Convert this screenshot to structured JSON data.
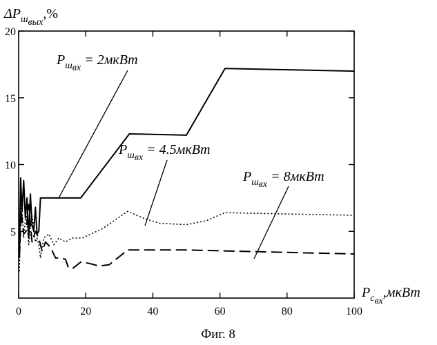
{
  "chart_data": {
    "type": "line",
    "caption": "Фиг. 8",
    "y_axis_label": {
      "main": "ΔP",
      "sub": "ш",
      "subsub": "вых",
      "unit": ",%"
    },
    "x_axis_label": {
      "main": "P",
      "sub": "с",
      "subsub": "вх",
      "unit": ",мкВт"
    },
    "xlim": [
      0,
      100
    ],
    "ylim": [
      0,
      20
    ],
    "x_ticks": [
      0,
      20,
      40,
      60,
      80,
      100
    ],
    "x_tick_labels": [
      "0",
      "20",
      "40",
      "60",
      "80",
      "100"
    ],
    "y_ticks": [
      5,
      10,
      15,
      20
    ],
    "y_tick_labels": [
      "5",
      "10",
      "15",
      "20"
    ],
    "grid": false,
    "series": [
      {
        "annotation": {
          "main": "P",
          "sub": "ш",
          "subsub": "вх",
          "rest": " = 2мкВт"
        },
        "style": "solid",
        "x": [
          0.2,
          0.6,
          1.0,
          1.5,
          2.0,
          2.5,
          3.0,
          3.5,
          4.0,
          4.5,
          5.0,
          5.5,
          6.0,
          6.5,
          18.5,
          33,
          50,
          61.5,
          100
        ],
        "y": [
          3.0,
          9.0,
          6.5,
          8.8,
          6.0,
          7.5,
          4.5,
          7.8,
          5.5,
          5.0,
          6.8,
          4.8,
          5.0,
          7.5,
          7.5,
          12.3,
          12.2,
          17.2,
          17.0
        ]
      },
      {
        "annotation": {
          "main": "P",
          "sub": "ш",
          "subsub": "вх",
          "rest": " = 4.5мкВт"
        },
        "style": "dotted",
        "x": [
          0.2,
          0.8,
          1.5,
          2.2,
          3.0,
          4.0,
          5.0,
          5.5,
          6.0,
          6.5,
          7.5,
          9.0,
          10.5,
          12.0,
          14.0,
          16.0,
          19.0,
          25.0,
          32.5,
          37.0,
          42.0,
          50.0,
          56.0,
          61.5,
          80.0,
          100.0
        ],
        "y": [
          2.0,
          7.5,
          4.5,
          6.5,
          4.0,
          6.2,
          4.2,
          4.5,
          4.0,
          3.0,
          4.5,
          4.8,
          4.0,
          4.5,
          4.2,
          4.5,
          4.5,
          5.2,
          6.5,
          6.0,
          5.6,
          5.5,
          5.8,
          6.4,
          6.3,
          6.2
        ]
      },
      {
        "annotation": {
          "main": "P",
          "sub": "ш",
          "subsub": "вх",
          "rest": " = 8мкВт"
        },
        "style": "dashed",
        "x": [
          0.2,
          0.8,
          1.5,
          2.2,
          3.0,
          4.0,
          5.0,
          6.0,
          7.0,
          8.0,
          9.5,
          11.0,
          12.5,
          14.0,
          14.8,
          16.0,
          18.5,
          21.0,
          24.0,
          27.0,
          32.5,
          50.0,
          100.0
        ],
        "y": [
          3.0,
          6.5,
          4.8,
          5.0,
          7.0,
          4.2,
          5.0,
          4.5,
          3.5,
          4.2,
          3.8,
          3.0,
          3.0,
          2.9,
          2.3,
          2.2,
          2.7,
          2.6,
          2.4,
          2.5,
          3.6,
          3.6,
          3.3
        ]
      }
    ]
  }
}
